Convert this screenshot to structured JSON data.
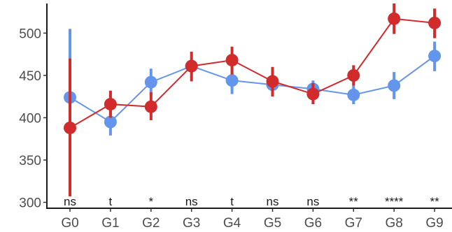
{
  "chart_data": {
    "type": "line",
    "categories": [
      "G0",
      "G1",
      "G2",
      "G3",
      "G4",
      "G5",
      "G6",
      "G7",
      "G8",
      "G9"
    ],
    "ylim": [
      293,
      535
    ],
    "yticks": [
      300,
      350,
      400,
      450,
      500
    ],
    "grid": false,
    "series": [
      {
        "color": "#6495ED",
        "values": [
          424,
          395,
          442,
          461,
          444,
          439,
          434,
          427,
          438,
          473
        ],
        "lower": [
          345,
          379,
          427,
          453,
          428,
          432,
          424,
          416,
          422,
          455
        ],
        "upper": [
          505,
          410,
          458,
          469,
          459,
          446,
          444,
          438,
          454,
          490
        ]
      },
      {
        "color": "#D22B2B",
        "values": [
          388,
          416,
          413,
          461,
          468,
          443,
          428,
          450,
          517,
          512
        ],
        "lower": [
          307,
          400,
          397,
          443,
          451,
          425,
          416,
          438,
          499,
          494
        ],
        "upper": [
          470,
          432,
          430,
          478,
          484,
          460,
          441,
          462,
          535,
          529
        ]
      }
    ],
    "significance": [
      "ns",
      "t",
      "*",
      "ns",
      "t",
      "ns",
      "ns",
      "**",
      "****",
      "**"
    ]
  }
}
